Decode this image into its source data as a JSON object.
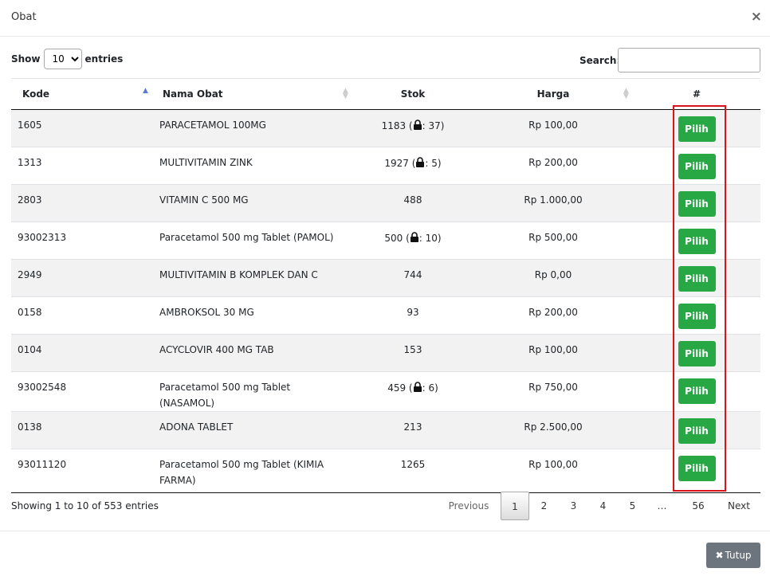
{
  "modal": {
    "title": "Obat",
    "close_glyph": "×"
  },
  "length_control": {
    "show_label": "Show",
    "selected": "10",
    "entries_label": "entries"
  },
  "search": {
    "label": "Search:",
    "value": ""
  },
  "table": {
    "columns": [
      "Kode",
      "Nama Obat",
      "Stok",
      "Harga",
      "#"
    ],
    "rows": [
      {
        "kode": "1605",
        "nama": "PARACETAMOL 100MG",
        "stok": "1183",
        "stok_locked": "37",
        "harga": "Rp 100,00",
        "action": "Pilih"
      },
      {
        "kode": "1313",
        "nama": "MULTIVITAMIN ZINK",
        "stok": "1927",
        "stok_locked": "5",
        "harga": "Rp 200,00",
        "action": "Pilih"
      },
      {
        "kode": "2803",
        "nama": "VITAMIN C 500 MG",
        "stok": "488",
        "stok_locked": null,
        "harga": "Rp 1.000,00",
        "action": "Pilih"
      },
      {
        "kode": "93002313",
        "nama": "Paracetamol 500 mg Tablet (PAMOL)",
        "stok": "500",
        "stok_locked": "10",
        "harga": "Rp 500,00",
        "action": "Pilih"
      },
      {
        "kode": "2949",
        "nama": "MULTIVITAMIN B KOMPLEK DAN C",
        "stok": "744",
        "stok_locked": null,
        "harga": "Rp 0,00",
        "action": "Pilih"
      },
      {
        "kode": "0158",
        "nama": "AMBROKSOL 30 MG",
        "stok": "93",
        "stok_locked": null,
        "harga": "Rp 200,00",
        "action": "Pilih"
      },
      {
        "kode": "0104",
        "nama": "ACYCLOVIR 400 MG TAB",
        "stok": "153",
        "stok_locked": null,
        "harga": "Rp 100,00",
        "action": "Pilih"
      },
      {
        "kode": "93002548",
        "nama": "Paracetamol 500 mg Tablet (NASAMOL)",
        "stok": "459",
        "stok_locked": "6",
        "harga": "Rp 750,00",
        "action": "Pilih"
      },
      {
        "kode": "0138",
        "nama": "ADONA TABLET",
        "stok": "213",
        "stok_locked": null,
        "harga": "Rp 2.500,00",
        "action": "Pilih"
      },
      {
        "kode": "93011120",
        "nama": "Paracetamol 500 mg Tablet (KIMIA FARMA)",
        "stok": "1265",
        "stok_locked": null,
        "harga": "Rp 100,00",
        "action": "Pilih"
      }
    ]
  },
  "info": "Showing 1 to 10 of 553 entries",
  "pagination": {
    "previous": "Previous",
    "pages": [
      "1",
      "2",
      "3",
      "4",
      "5"
    ],
    "ellipsis": "…",
    "last": "56",
    "next": "Next",
    "current": "1"
  },
  "footer": {
    "close_label": "Tutup",
    "close_glyph": "✖"
  },
  "colors": {
    "pilih_button": "#28a745",
    "tutup_button": "#6c757d",
    "highlight": "#d9131a",
    "sort_active": "#5a7bd1"
  },
  "icons": {
    "lock": "lock-icon",
    "close": "close-icon",
    "sort": "sort-icon"
  }
}
